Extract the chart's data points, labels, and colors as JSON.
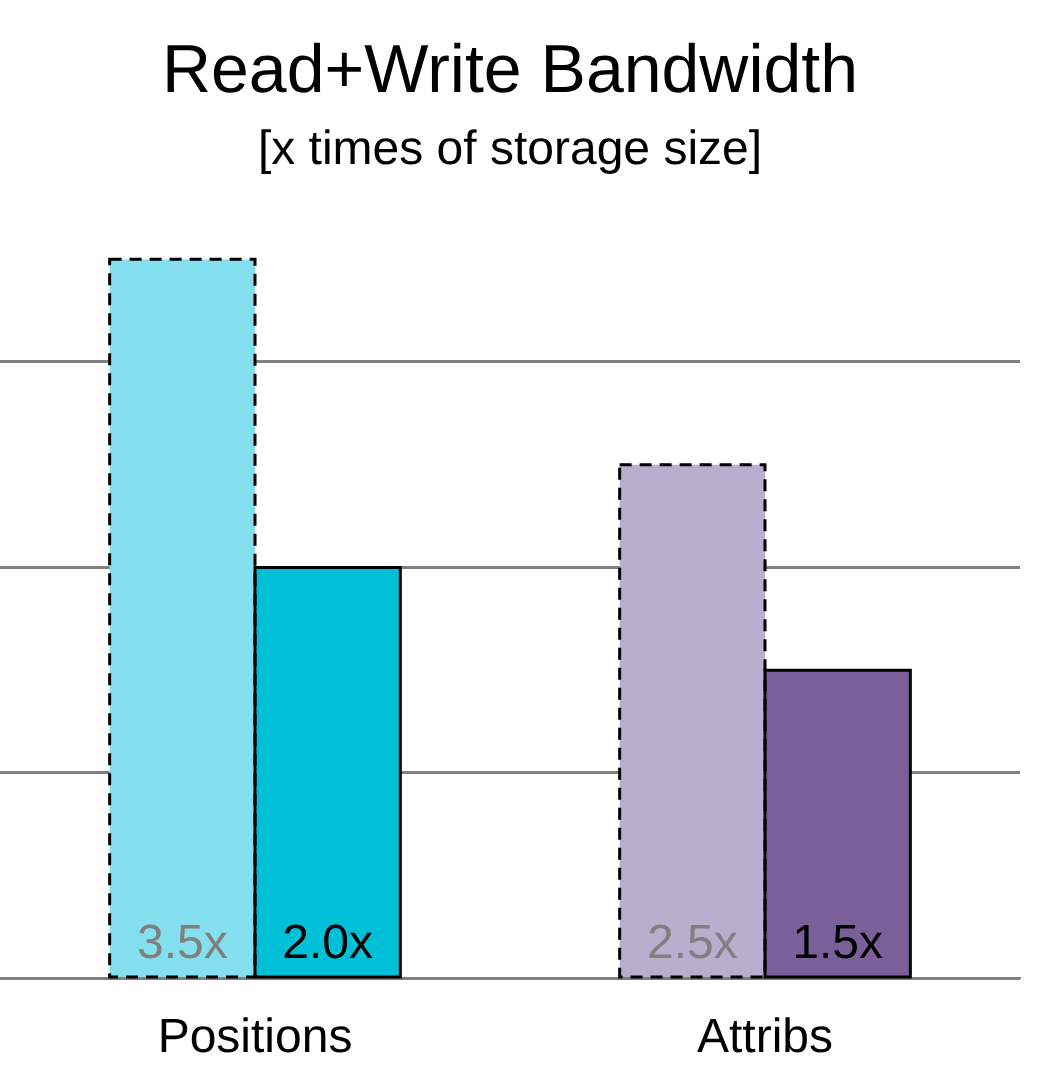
{
  "chart_data": {
    "type": "bar",
    "title": "Read+Write Bandwidth",
    "subtitle": "[x times of storage size]",
    "categories": [
      "Positions",
      "Attribs"
    ],
    "series": [
      {
        "colors": [
          "#84e0ee",
          "#b8aece"
        ],
        "values": [
          3.5,
          2.5
        ],
        "value_labels": [
          "3.5x",
          "2.5x"
        ],
        "line_style": "dashed"
      },
      {
        "colors": [
          "#00c0d8",
          "#7a5f9a"
        ],
        "values": [
          2.0,
          1.5
        ],
        "value_labels": [
          "2.0x",
          "1.5x"
        ],
        "line_style": "solid"
      }
    ],
    "ylim": [
      0,
      3.5
    ],
    "yticks": [
      {
        "value": 0,
        "label": null
      },
      {
        "value": 1,
        "label": null
      },
      {
        "value": 2,
        "label": null
      },
      {
        "value": 3,
        "label": null
      }
    ],
    "grid": "y",
    "tick_labels": "x",
    "legend": false
  }
}
